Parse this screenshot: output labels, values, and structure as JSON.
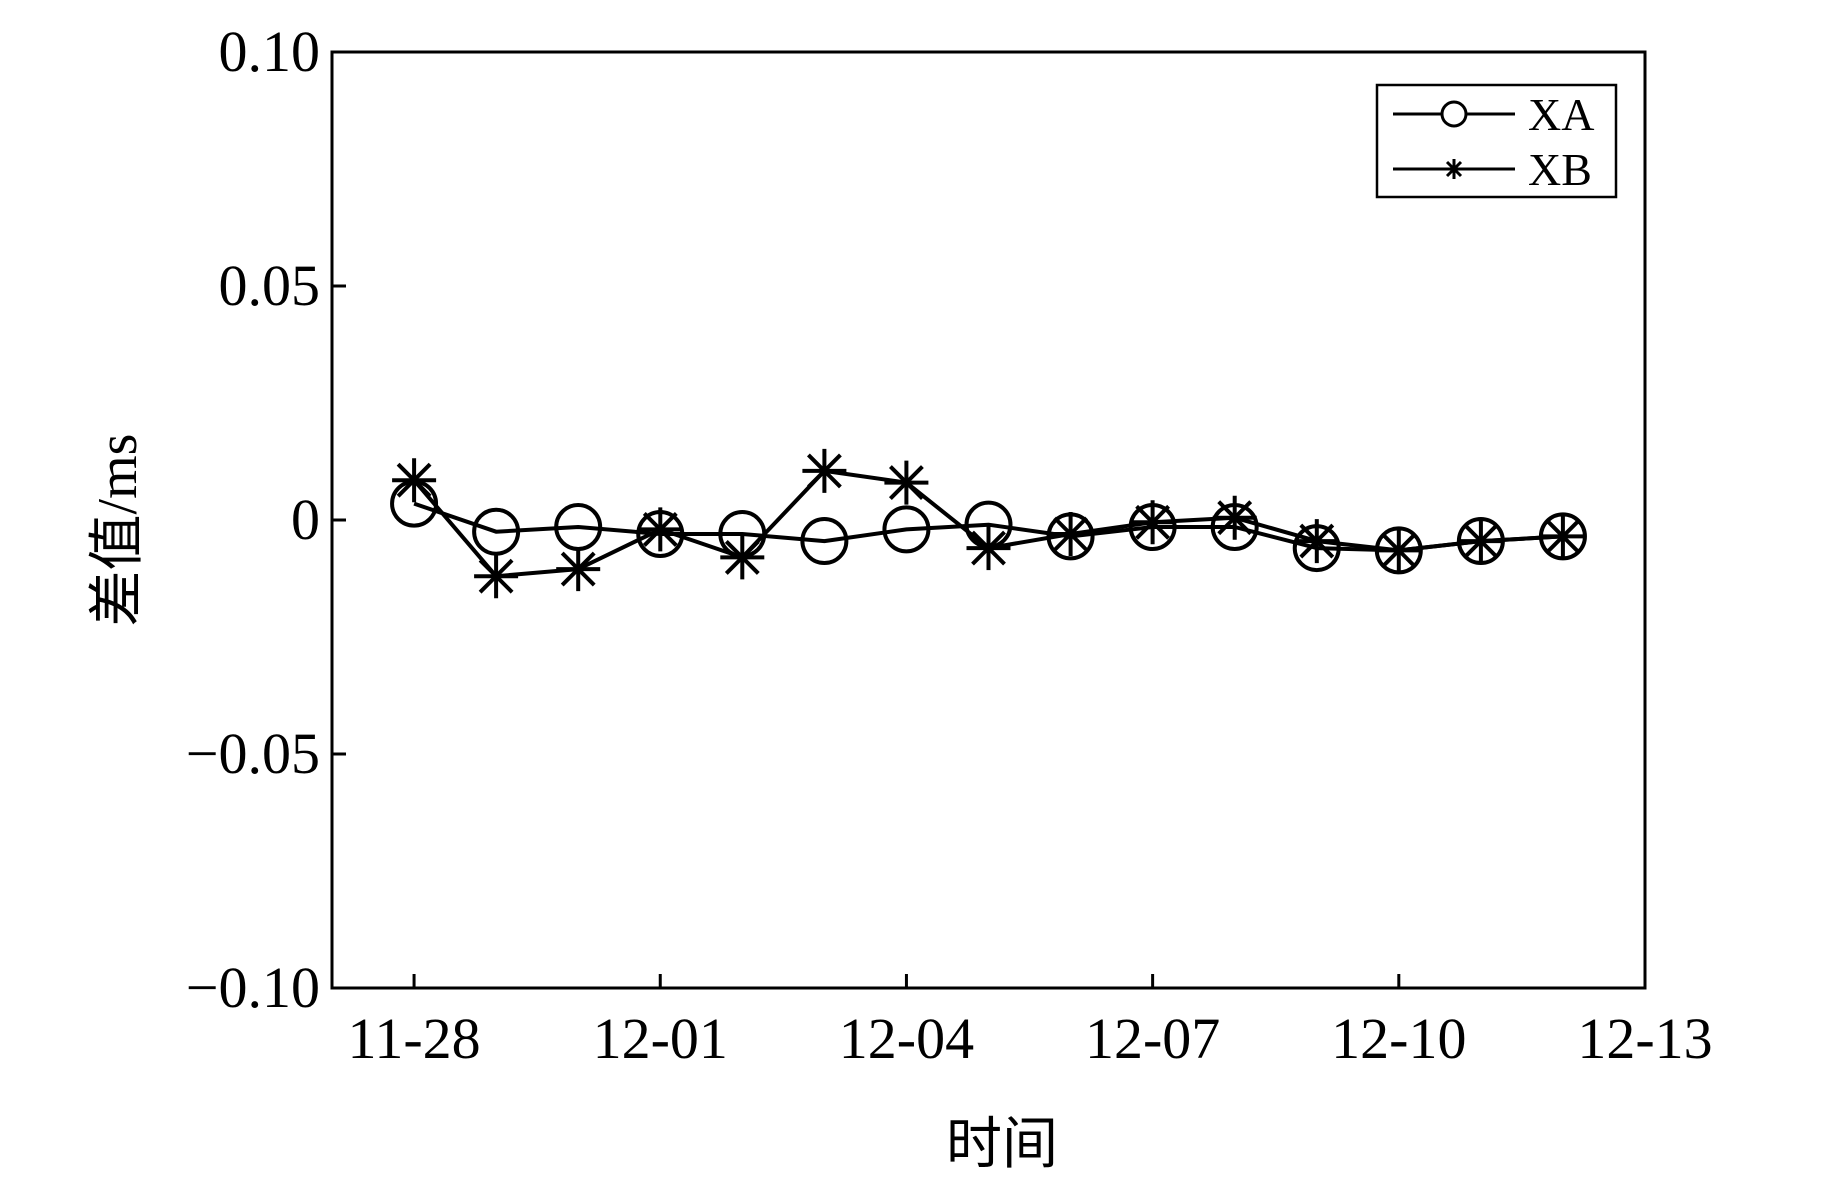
{
  "chart_data": {
    "type": "line",
    "x_format": "MM-DD",
    "x": [
      "11-28",
      "11-29",
      "11-30",
      "12-01",
      "12-02",
      "12-03",
      "12-04",
      "12-05",
      "12-06",
      "12-07",
      "12-08",
      "12-09",
      "12-10",
      "12-11",
      "12-12"
    ],
    "xticks": [
      "11-28",
      "12-01",
      "12-04",
      "12-07",
      "12-10",
      "12-13"
    ],
    "xlim": [
      "11-27",
      "12-13"
    ],
    "ylim": [
      -0.1,
      0.1
    ],
    "yticks": [
      0.1,
      0.05,
      0,
      -0.05,
      -0.1
    ],
    "ytick_labels": [
      "0.10",
      "0.05",
      "0",
      "−0.05",
      "−0.10"
    ],
    "xlabel": "时间",
    "ylabel": "差值/ms",
    "grid": false,
    "legend_position": "top-right",
    "series": [
      {
        "name": "XA",
        "marker": "circle",
        "color": "#000000",
        "values": [
          0.0035,
          -0.0025,
          -0.0015,
          -0.003,
          -0.003,
          -0.0045,
          -0.002,
          -0.001,
          -0.0035,
          -0.0015,
          -0.0015,
          -0.006,
          -0.0065,
          -0.0045,
          -0.0035
        ]
      },
      {
        "name": "XB",
        "marker": "star",
        "color": "#000000",
        "values": [
          0.0085,
          -0.012,
          -0.0105,
          -0.002,
          -0.008,
          0.0105,
          0.008,
          -0.006,
          -0.003,
          -0.0005,
          0.0005,
          -0.0045,
          -0.0065,
          -0.0045,
          -0.0035
        ]
      }
    ]
  }
}
